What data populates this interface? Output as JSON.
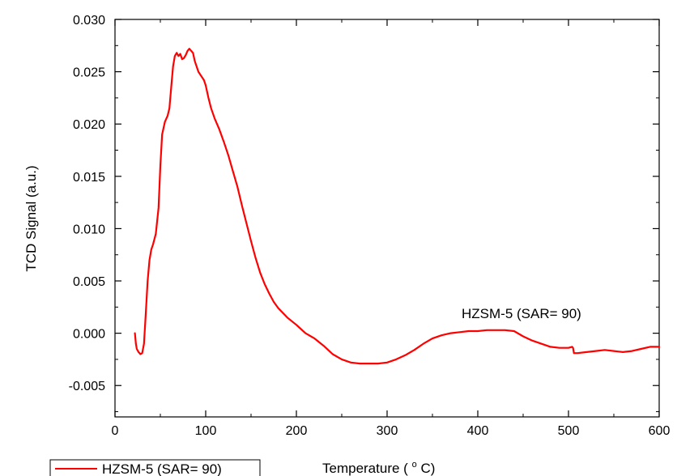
{
  "chart_data": {
    "type": "line",
    "xlabel": "Temperature",
    "xlabel_unit_prefix": "(",
    "xlabel_unit_sup": "o",
    "xlabel_unit_suffix": "C)",
    "ylabel": "TCD Signal (a.u.)",
    "xlim": [
      0,
      600
    ],
    "ylim": [
      -0.008,
      0.03
    ],
    "x_ticks": [
      0,
      100,
      200,
      300,
      400,
      500,
      600
    ],
    "x_tick_labels": [
      "0",
      "100",
      "200",
      "300",
      "400",
      "500",
      "600"
    ],
    "y_ticks": [
      -0.005,
      0.0,
      0.005,
      0.01,
      0.015,
      0.02,
      0.025,
      0.03
    ],
    "y_tick_labels": [
      "-0.005",
      "0.000",
      "0.005",
      "0.010",
      "0.015",
      "0.020",
      "0.025",
      "0.030"
    ],
    "grid": false,
    "legend_position": "bottom-left",
    "annotation": "HZSM-5 (SAR= 90)",
    "series": [
      {
        "name": "HZSM-5 (SAR= 90)",
        "color": "#ff0000",
        "x": [
          22,
          23,
          24,
          26,
          28,
          30,
          32,
          34,
          36,
          38,
          40,
          42,
          45,
          48,
          50,
          52,
          55,
          58,
          60,
          62,
          64,
          66,
          68,
          70,
          72,
          74,
          76,
          78,
          80,
          82,
          84,
          86,
          88,
          90,
          92,
          95,
          98,
          100,
          103,
          106,
          110,
          115,
          120,
          125,
          130,
          135,
          140,
          145,
          150,
          155,
          160,
          165,
          170,
          175,
          180,
          190,
          200,
          210,
          220,
          230,
          240,
          250,
          260,
          270,
          280,
          290,
          300,
          310,
          320,
          330,
          340,
          350,
          360,
          370,
          380,
          390,
          400,
          410,
          420,
          430,
          440,
          450,
          460,
          470,
          480,
          490,
          500,
          504,
          505,
          506,
          510,
          520,
          530,
          540,
          550,
          560,
          570,
          580,
          590,
          600
        ],
        "y": [
          0.0,
          -0.001,
          -0.0015,
          -0.0018,
          -0.002,
          -0.0019,
          -0.001,
          0.002,
          0.005,
          0.007,
          0.008,
          0.0085,
          0.0095,
          0.012,
          0.016,
          0.019,
          0.0202,
          0.0208,
          0.0215,
          0.0235,
          0.0255,
          0.0265,
          0.0268,
          0.0265,
          0.0267,
          0.0262,
          0.0263,
          0.0266,
          0.027,
          0.0272,
          0.027,
          0.0268,
          0.026,
          0.0255,
          0.025,
          0.0246,
          0.0242,
          0.0237,
          0.0225,
          0.0215,
          0.0205,
          0.0195,
          0.0183,
          0.017,
          0.0155,
          0.014,
          0.0122,
          0.0105,
          0.0088,
          0.0072,
          0.0058,
          0.0047,
          0.0038,
          0.003,
          0.0024,
          0.0015,
          0.0008,
          0.0,
          -0.0005,
          -0.0012,
          -0.002,
          -0.0025,
          -0.0028,
          -0.0029,
          -0.0029,
          -0.0029,
          -0.0028,
          -0.0025,
          -0.0021,
          -0.0016,
          -0.001,
          -0.0005,
          -0.0002,
          0.0,
          0.0001,
          0.0002,
          0.0002,
          0.0003,
          0.0003,
          0.0003,
          0.0002,
          -0.0003,
          -0.0007,
          -0.001,
          -0.0013,
          -0.0014,
          -0.0014,
          -0.0013,
          -0.0014,
          -0.0019,
          -0.0019,
          -0.0018,
          -0.0017,
          -0.0016,
          -0.0017,
          -0.0018,
          -0.0017,
          -0.0015,
          -0.0013,
          -0.0013
        ]
      }
    ]
  }
}
